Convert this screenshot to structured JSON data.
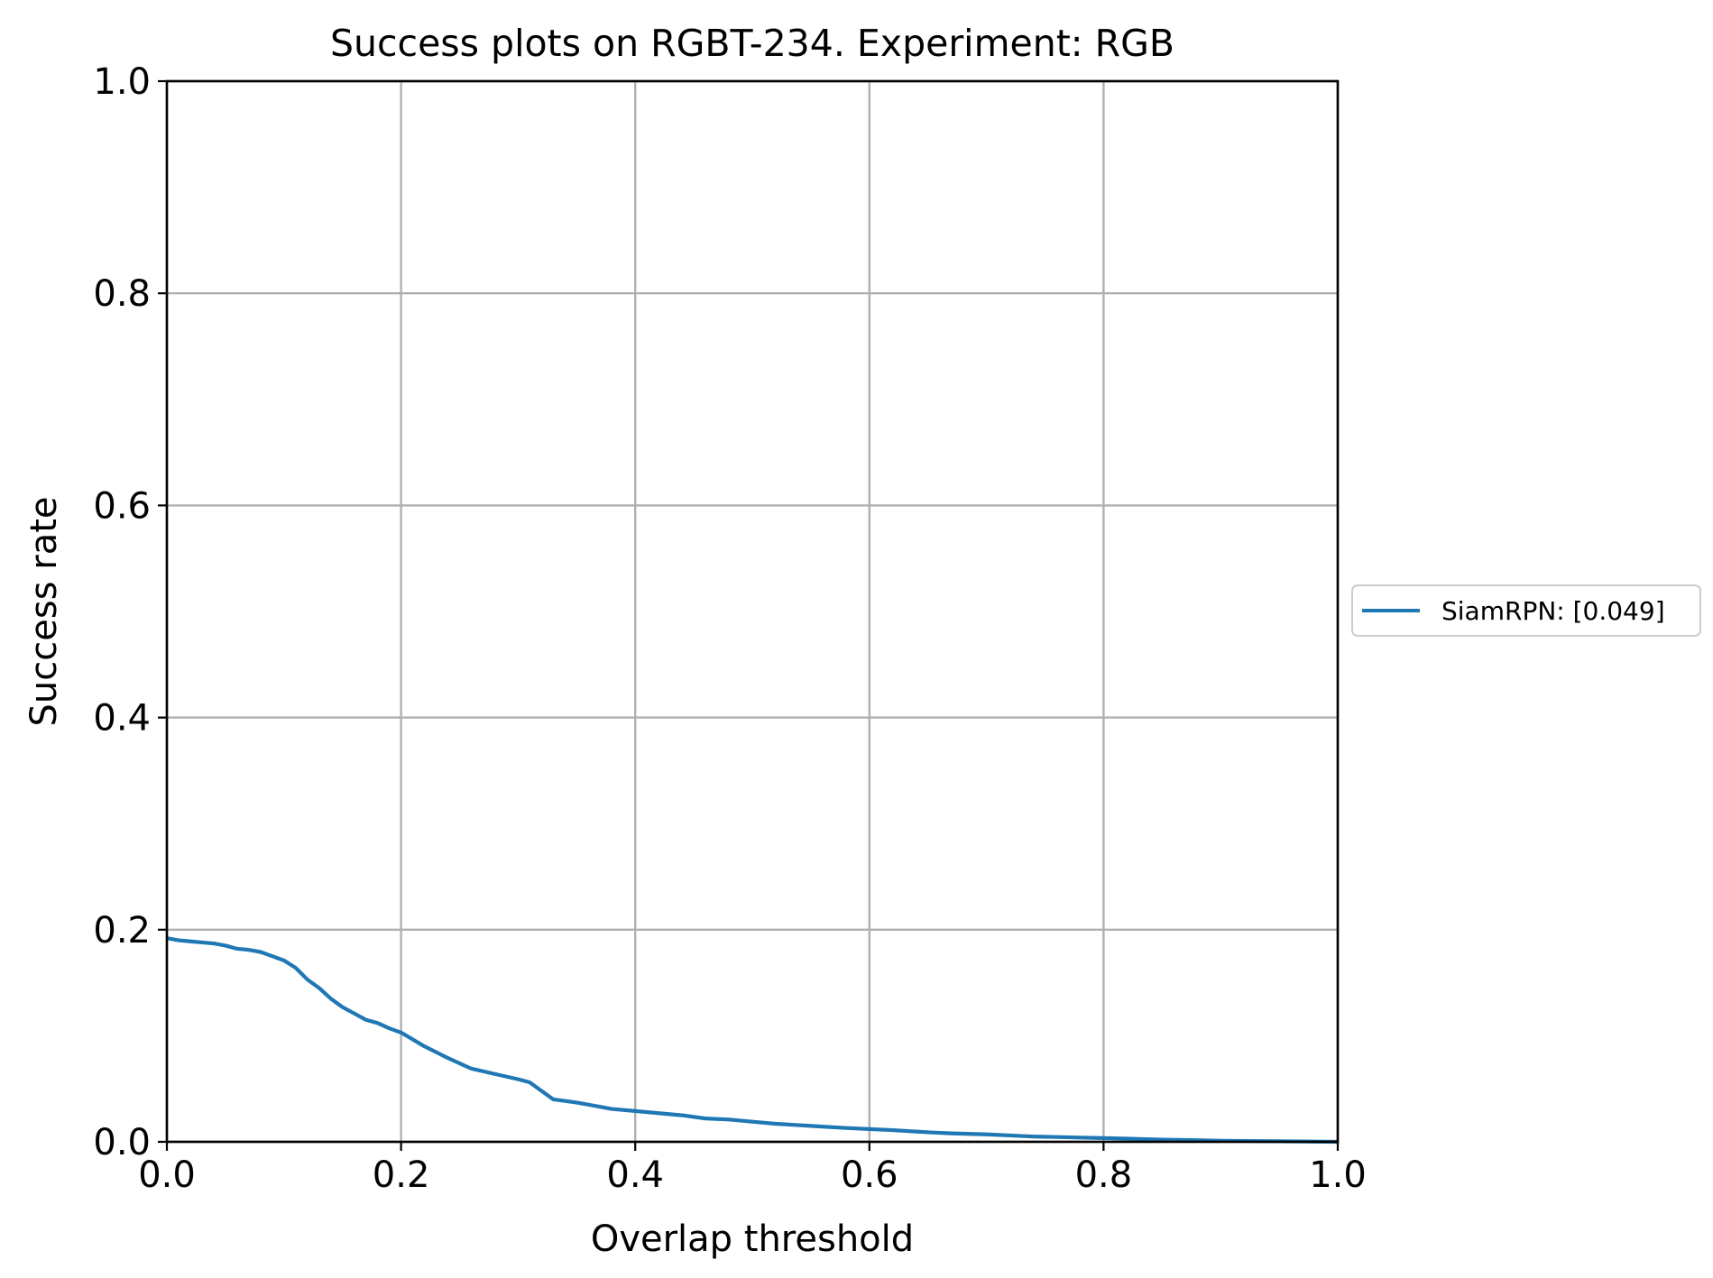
{
  "chart_data": {
    "type": "line",
    "title": "Success plots on RGBT-234. Experiment: RGB",
    "xlabel": "Overlap threshold",
    "ylabel": "Success rate",
    "xlim": [
      0.0,
      1.0
    ],
    "ylim": [
      0.0,
      1.0
    ],
    "xticks": [
      "0.0",
      "0.2",
      "0.4",
      "0.6",
      "0.8",
      "1.0"
    ],
    "yticks": [
      "0.0",
      "0.2",
      "0.4",
      "0.6",
      "0.8",
      "1.0"
    ],
    "grid": true,
    "legend_position": "center-right outside",
    "series": [
      {
        "name": "SiamRPN: [0.049]",
        "color": "#1f77b4",
        "x": [
          0.0,
          0.01,
          0.02,
          0.03,
          0.04,
          0.05,
          0.06,
          0.07,
          0.08,
          0.09,
          0.1,
          0.11,
          0.12,
          0.13,
          0.14,
          0.15,
          0.16,
          0.17,
          0.18,
          0.19,
          0.2,
          0.22,
          0.24,
          0.26,
          0.28,
          0.3,
          0.31,
          0.32,
          0.33,
          0.35,
          0.37,
          0.38,
          0.4,
          0.42,
          0.44,
          0.46,
          0.48,
          0.5,
          0.52,
          0.55,
          0.58,
          0.6,
          0.62,
          0.65,
          0.67,
          0.7,
          0.72,
          0.74,
          0.76,
          0.78,
          0.8,
          0.82,
          0.85,
          0.88,
          0.9,
          0.92,
          0.95,
          0.97,
          1.0
        ],
        "y": [
          0.192,
          0.19,
          0.189,
          0.188,
          0.187,
          0.185,
          0.182,
          0.181,
          0.179,
          0.175,
          0.171,
          0.164,
          0.153,
          0.145,
          0.135,
          0.127,
          0.121,
          0.115,
          0.112,
          0.107,
          0.103,
          0.09,
          0.079,
          0.069,
          0.064,
          0.059,
          0.056,
          0.048,
          0.04,
          0.037,
          0.033,
          0.031,
          0.029,
          0.027,
          0.025,
          0.022,
          0.021,
          0.019,
          0.017,
          0.015,
          0.013,
          0.012,
          0.011,
          0.009,
          0.008,
          0.007,
          0.006,
          0.005,
          0.0045,
          0.004,
          0.0035,
          0.003,
          0.002,
          0.0015,
          0.001,
          0.0008,
          0.0005,
          0.0003,
          0.0
        ]
      }
    ]
  }
}
